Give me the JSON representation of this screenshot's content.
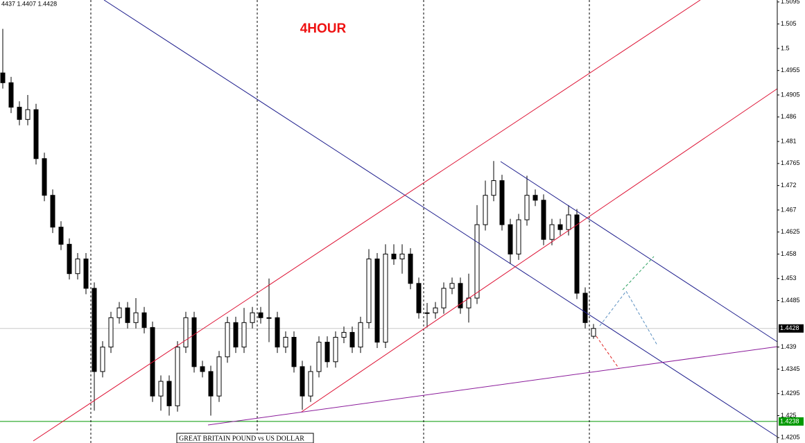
{
  "chart_data": {
    "type": "candlestick",
    "title": "4HOUR",
    "info": "4437 1.4407 1.4428",
    "symbol_label": "GREAT BRITAIN POUND vs US DOLLAR",
    "last_price": 1.4428,
    "support_level": 1.4238,
    "ylim": [
      1.4194,
      1.5099
    ],
    "yticks": [
      1.5095,
      1.505,
      1.5,
      1.4955,
      1.4905,
      1.486,
      1.481,
      1.4765,
      1.472,
      1.467,
      1.4625,
      1.458,
      1.453,
      1.4485,
      1.439,
      1.4345,
      1.4295,
      1.425,
      1.4205
    ],
    "open": [
      1.495,
      1.493,
      1.488,
      1.4855,
      1.4875,
      1.4775,
      1.47,
      1.4635,
      1.46,
      1.454,
      1.457,
      1.451,
      1.434,
      1.439,
      1.445,
      1.447,
      1.444,
      1.446,
      1.443,
      1.429,
      1.432,
      1.427,
      1.439,
      1.445,
      1.435,
      1.434,
      1.429,
      1.437,
      1.444,
      1.439,
      1.444,
      1.446,
      1.445,
      1.445,
      1.439,
      1.441,
      1.435,
      1.429,
      1.434,
      1.44,
      1.436,
      1.441,
      1.442,
      1.439,
      1.444,
      1.457,
      1.44,
      1.458,
      1.457,
      1.458,
      1.452,
      1.446,
      1.446,
      1.447,
      1.451,
      1.452,
      1.447,
      1.449,
      1.464,
      1.47,
      1.473,
      1.464,
      1.458,
      1.465,
      1.47,
      1.469,
      1.461,
      1.464,
      1.463,
      1.466,
      1.45,
      1.4412
    ],
    "high": [
      1.504,
      1.4942,
      1.4892,
      1.4905,
      1.4887,
      1.4787,
      1.4712,
      1.4647,
      1.4612,
      1.4582,
      1.4582,
      1.4522,
      1.4402,
      1.4462,
      1.4482,
      1.4482,
      1.449,
      1.4472,
      1.4442,
      1.4332,
      1.4332,
      1.4402,
      1.4462,
      1.4462,
      1.4362,
      1.4352,
      1.4382,
      1.4452,
      1.4452,
      1.447,
      1.4472,
      1.4472,
      1.453,
      1.4462,
      1.4422,
      1.4422,
      1.4362,
      1.4352,
      1.4412,
      1.4412,
      1.4422,
      1.4432,
      1.4432,
      1.4452,
      1.459,
      1.4582,
      1.46,
      1.46,
      1.46,
      1.4592,
      1.4532,
      1.448,
      1.4482,
      1.4522,
      1.4532,
      1.4532,
      1.454,
      1.468,
      1.473,
      1.477,
      1.4742,
      1.4652,
      1.4662,
      1.474,
      1.4712,
      1.4702,
      1.4652,
      1.4652,
      1.468,
      1.4672,
      1.4512,
      1.4437
    ],
    "low": [
      1.4918,
      1.4868,
      1.4843,
      1.4843,
      1.4763,
      1.4688,
      1.4623,
      1.4588,
      1.4528,
      1.4528,
      1.4498,
      1.426,
      1.4328,
      1.4378,
      1.4438,
      1.4428,
      1.4428,
      1.4418,
      1.4278,
      1.426,
      1.425,
      1.4258,
      1.4378,
      1.4338,
      1.4328,
      1.425,
      1.4278,
      1.4358,
      1.4378,
      1.4378,
      1.4428,
      1.4438,
      1.44,
      1.4378,
      1.4378,
      1.4338,
      1.4262,
      1.4278,
      1.4328,
      1.4348,
      1.4348,
      1.4398,
      1.4378,
      1.4378,
      1.4428,
      1.4388,
      1.4388,
      1.4558,
      1.454,
      1.4508,
      1.4448,
      1.443,
      1.4448,
      1.4458,
      1.4498,
      1.4458,
      1.444,
      1.4478,
      1.4628,
      1.4688,
      1.4628,
      1.456,
      1.4568,
      1.4638,
      1.4678,
      1.4598,
      1.4598,
      1.4618,
      1.4618,
      1.4488,
      1.4428,
      1.4407
    ],
    "close": [
      1.493,
      1.488,
      1.4855,
      1.4875,
      1.4775,
      1.47,
      1.4635,
      1.46,
      1.454,
      1.457,
      1.451,
      1.434,
      1.439,
      1.445,
      1.447,
      1.444,
      1.446,
      1.443,
      1.429,
      1.432,
      1.427,
      1.439,
      1.445,
      1.435,
      1.434,
      1.429,
      1.437,
      1.444,
      1.439,
      1.444,
      1.446,
      1.445,
      1.445,
      1.439,
      1.441,
      1.435,
      1.429,
      1.434,
      1.44,
      1.436,
      1.441,
      1.442,
      1.439,
      1.444,
      1.457,
      1.44,
      1.458,
      1.457,
      1.458,
      1.452,
      1.446,
      1.446,
      1.447,
      1.451,
      1.452,
      1.447,
      1.449,
      1.464,
      1.47,
      1.473,
      1.464,
      1.458,
      1.465,
      1.47,
      1.469,
      1.461,
      1.464,
      1.463,
      1.466,
      1.45,
      1.444,
      1.4428
    ],
    "bull_color": "#ffffff",
    "bear_color": "#000000",
    "support_color": "#009900"
  }
}
